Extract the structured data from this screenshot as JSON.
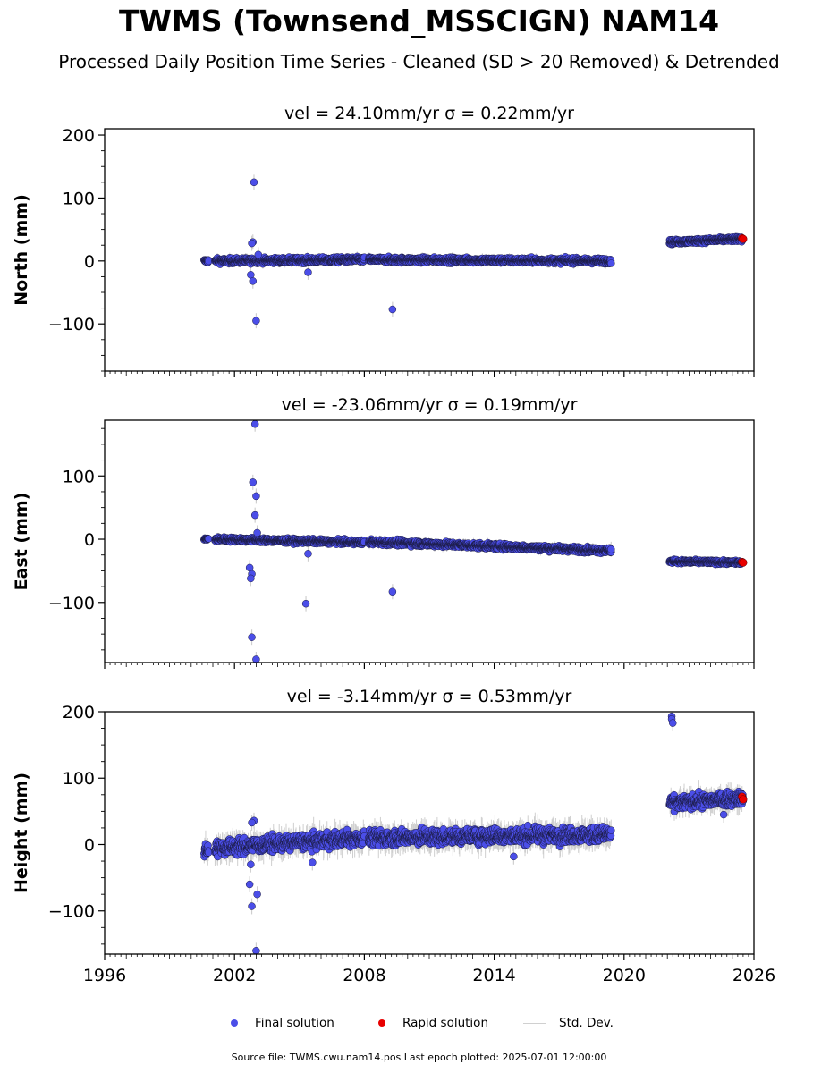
{
  "title": "TWMS (Townsend_MSSCIGN) NAM14",
  "subtitle": "Processed Daily Position Time Series - Cleaned (SD > 20 Removed) & Detrended",
  "legend": {
    "final": "Final solution",
    "rapid": "Rapid solution",
    "std": "Std. Dev."
  },
  "footer": "Source file: TWMS.cwu.nam14.pos  Last epoch plotted: 2025-07-01 12:00:00",
  "colors": {
    "final": "#4b4ee8",
    "rapid": "#e80000",
    "std": "#cfcfcf",
    "edge": "#1a1a40"
  },
  "chart_data": [
    {
      "type": "scatter",
      "component": "north",
      "title": "vel = 24.10mm/yr   σ = 0.22mm/yr",
      "ylabel": "North (mm)",
      "xlim": [
        1996,
        2026
      ],
      "ylim": [
        -175,
        210
      ],
      "yticks": [
        -100,
        0,
        100,
        200
      ],
      "xticks": [],
      "segments": [
        {
          "start": 2000.6,
          "end": 2000.8,
          "y0": 0,
          "y1": 0,
          "noise": 2
        },
        {
          "start": 2001.1,
          "end": 2008.0,
          "y0": 0,
          "y1": 2,
          "noise": 3
        },
        {
          "start": 2008.2,
          "end": 2019.4,
          "y0": 2,
          "y1": 0,
          "noise": 3
        },
        {
          "start": 2022.1,
          "end": 2025.5,
          "y0": 30,
          "y1": 35,
          "noise": 2.5
        }
      ],
      "outliers": [
        {
          "x": 2002.9,
          "y": 125
        },
        {
          "x": 2002.85,
          "y": 30
        },
        {
          "x": 2002.8,
          "y": 28
        },
        {
          "x": 2002.75,
          "y": -22
        },
        {
          "x": 2002.85,
          "y": -32
        },
        {
          "x": 2003.0,
          "y": -95
        },
        {
          "x": 2005.4,
          "y": -18
        },
        {
          "x": 2009.3,
          "y": -77
        },
        {
          "x": 2003.1,
          "y": 10
        }
      ],
      "rapid": [
        {
          "x": 2025.45,
          "y": 36
        },
        {
          "x": 2025.5,
          "y": 35
        }
      ]
    },
    {
      "type": "scatter",
      "component": "east",
      "title": "vel = -23.06mm/yr   σ = 0.19mm/yr",
      "ylabel": "East (mm)",
      "xlim": [
        1996,
        2026
      ],
      "ylim": [
        -195,
        188
      ],
      "yticks": [
        -100,
        0,
        100
      ],
      "xticks": [],
      "segments": [
        {
          "start": 2000.6,
          "end": 2000.8,
          "y0": 0,
          "y1": 0,
          "noise": 2
        },
        {
          "start": 2001.1,
          "end": 2008.0,
          "y0": 0,
          "y1": -5,
          "noise": 2.5
        },
        {
          "start": 2008.2,
          "end": 2019.4,
          "y0": -4,
          "y1": -18,
          "noise": 3
        },
        {
          "start": 2022.1,
          "end": 2025.5,
          "y0": -35,
          "y1": -37,
          "noise": 2
        }
      ],
      "outliers": [
        {
          "x": 2002.95,
          "y": 182
        },
        {
          "x": 2002.85,
          "y": 90
        },
        {
          "x": 2003.0,
          "y": 68
        },
        {
          "x": 2002.95,
          "y": 38
        },
        {
          "x": 2003.05,
          "y": 10
        },
        {
          "x": 2002.7,
          "y": -45
        },
        {
          "x": 2002.8,
          "y": -55
        },
        {
          "x": 2002.75,
          "y": -62
        },
        {
          "x": 2002.8,
          "y": -155
        },
        {
          "x": 2003.0,
          "y": -190
        },
        {
          "x": 2005.4,
          "y": -23
        },
        {
          "x": 2005.3,
          "y": -102
        },
        {
          "x": 2009.3,
          "y": -83
        },
        {
          "x": 2019.4,
          "y": -16
        }
      ],
      "rapid": [
        {
          "x": 2025.45,
          "y": -36
        },
        {
          "x": 2025.5,
          "y": -37
        }
      ]
    },
    {
      "type": "scatter",
      "component": "height",
      "title": "vel = -3.14mm/yr   σ = 0.53mm/yr",
      "ylabel": "Height (mm)",
      "xlim": [
        1996,
        2026
      ],
      "ylim": [
        -165,
        200
      ],
      "yticks": [
        -100,
        0,
        100,
        200
      ],
      "xticks": [
        1996,
        2002,
        2008,
        2014,
        2020,
        2026
      ],
      "segments": [
        {
          "start": 2000.6,
          "end": 2000.8,
          "y0": -8,
          "y1": -8,
          "noise": 8
        },
        {
          "start": 2001.1,
          "end": 2008.0,
          "y0": -5,
          "y1": 10,
          "noise": 8
        },
        {
          "start": 2008.2,
          "end": 2019.4,
          "y0": 10,
          "y1": 15,
          "noise": 8
        },
        {
          "start": 2022.1,
          "end": 2025.5,
          "y0": 62,
          "y1": 70,
          "noise": 7
        }
      ],
      "outliers": [
        {
          "x": 2002.9,
          "y": 36
        },
        {
          "x": 2002.8,
          "y": 33
        },
        {
          "x": 2002.75,
          "y": -30
        },
        {
          "x": 2002.7,
          "y": -60
        },
        {
          "x": 2003.05,
          "y": -75
        },
        {
          "x": 2002.8,
          "y": -93
        },
        {
          "x": 2003.0,
          "y": -160
        },
        {
          "x": 2005.6,
          "y": -27
        },
        {
          "x": 2014.9,
          "y": -18
        },
        {
          "x": 2022.2,
          "y": 193
        },
        {
          "x": 2022.2,
          "y": 189
        },
        {
          "x": 2022.25,
          "y": 183
        },
        {
          "x": 2024.6,
          "y": 45
        }
      ],
      "rapid": [
        {
          "x": 2025.45,
          "y": 72
        },
        {
          "x": 2025.5,
          "y": 68
        }
      ]
    }
  ]
}
